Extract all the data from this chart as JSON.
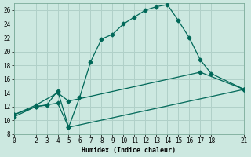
{
  "xlabel": "Humidex (Indice chaleur)",
  "xlim": [
    0,
    21
  ],
  "ylim": [
    8,
    27
  ],
  "yticks": [
    8,
    10,
    12,
    14,
    16,
    18,
    20,
    22,
    24,
    26
  ],
  "xticks": [
    0,
    2,
    3,
    4,
    5,
    6,
    7,
    8,
    9,
    10,
    11,
    12,
    13,
    14,
    15,
    16,
    17,
    18,
    21
  ],
  "bg_color": "#cce8e0",
  "grid_color": "#b0d0c8",
  "line_color": "#006858",
  "line1_x": [
    0,
    2,
    3,
    4,
    5,
    6,
    7,
    8,
    9,
    10,
    11,
    12,
    13,
    14,
    15,
    16,
    17,
    18,
    21
  ],
  "line1_y": [
    10.5,
    12.0,
    12.2,
    14.3,
    9.0,
    13.3,
    18.5,
    21.8,
    22.5,
    24.0,
    25.0,
    26.0,
    26.5,
    26.8,
    24.5,
    22.0,
    18.8,
    16.8,
    14.5
  ],
  "line2_x": [
    0,
    2,
    4,
    5,
    17,
    21
  ],
  "line2_y": [
    10.8,
    12.2,
    14.0,
    12.8,
    17.0,
    14.5
  ],
  "line3_x": [
    0,
    2,
    4,
    5,
    21
  ],
  "line3_y": [
    10.8,
    12.0,
    12.5,
    9.0,
    14.5
  ],
  "marker": "D",
  "markersize": 2.5,
  "linewidth": 0.9
}
